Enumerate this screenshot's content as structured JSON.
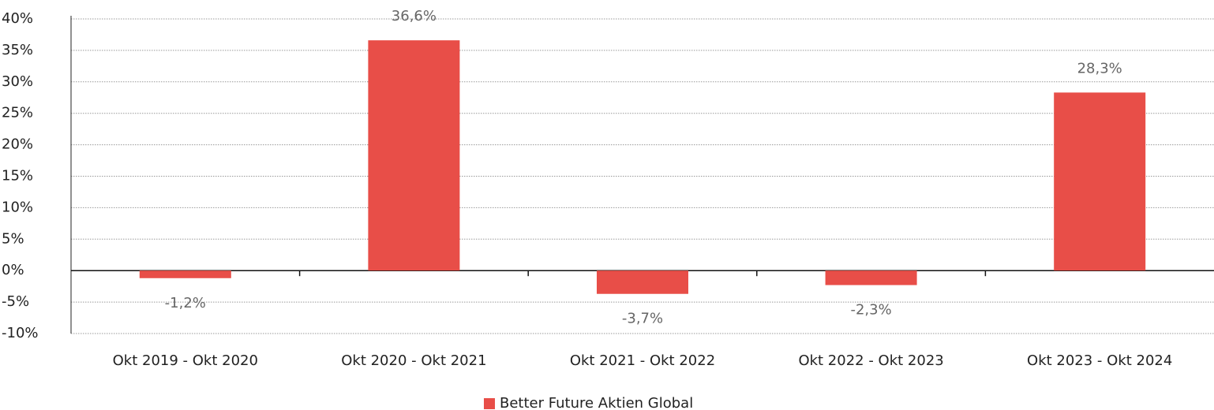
{
  "chart_data": {
    "type": "bar",
    "categories": [
      "Okt 2019 - Okt 2020",
      "Okt 2020 - Okt 2021",
      "Okt 2021 - Okt 2022",
      "Okt 2022 - Okt 2023",
      "Okt 2023 - Okt 2024"
    ],
    "series": [
      {
        "name": "Better Future Aktien Global",
        "color": "#e84e48",
        "values": [
          -1.2,
          36.6,
          -3.7,
          -2.3,
          28.3
        ],
        "value_labels": [
          "-1,2%",
          "36,6%",
          "-3,7%",
          "-2,3%",
          "28,3%"
        ]
      }
    ],
    "ylim": [
      -10,
      40
    ],
    "yticks": [
      {
        "value": -10,
        "label": "-10%"
      },
      {
        "value": -5,
        "label": "-5%"
      },
      {
        "value": 0,
        "label": "0%"
      },
      {
        "value": 5,
        "label": "5%"
      },
      {
        "value": 10,
        "label": "10%"
      },
      {
        "value": 15,
        "label": "15%"
      },
      {
        "value": 20,
        "label": "20%"
      },
      {
        "value": 25,
        "label": "25%"
      },
      {
        "value": 30,
        "label": "30%"
      },
      {
        "value": 35,
        "label": "35%"
      },
      {
        "value": 40,
        "label": "40%"
      }
    ],
    "grid": true,
    "legend": "bottom"
  }
}
